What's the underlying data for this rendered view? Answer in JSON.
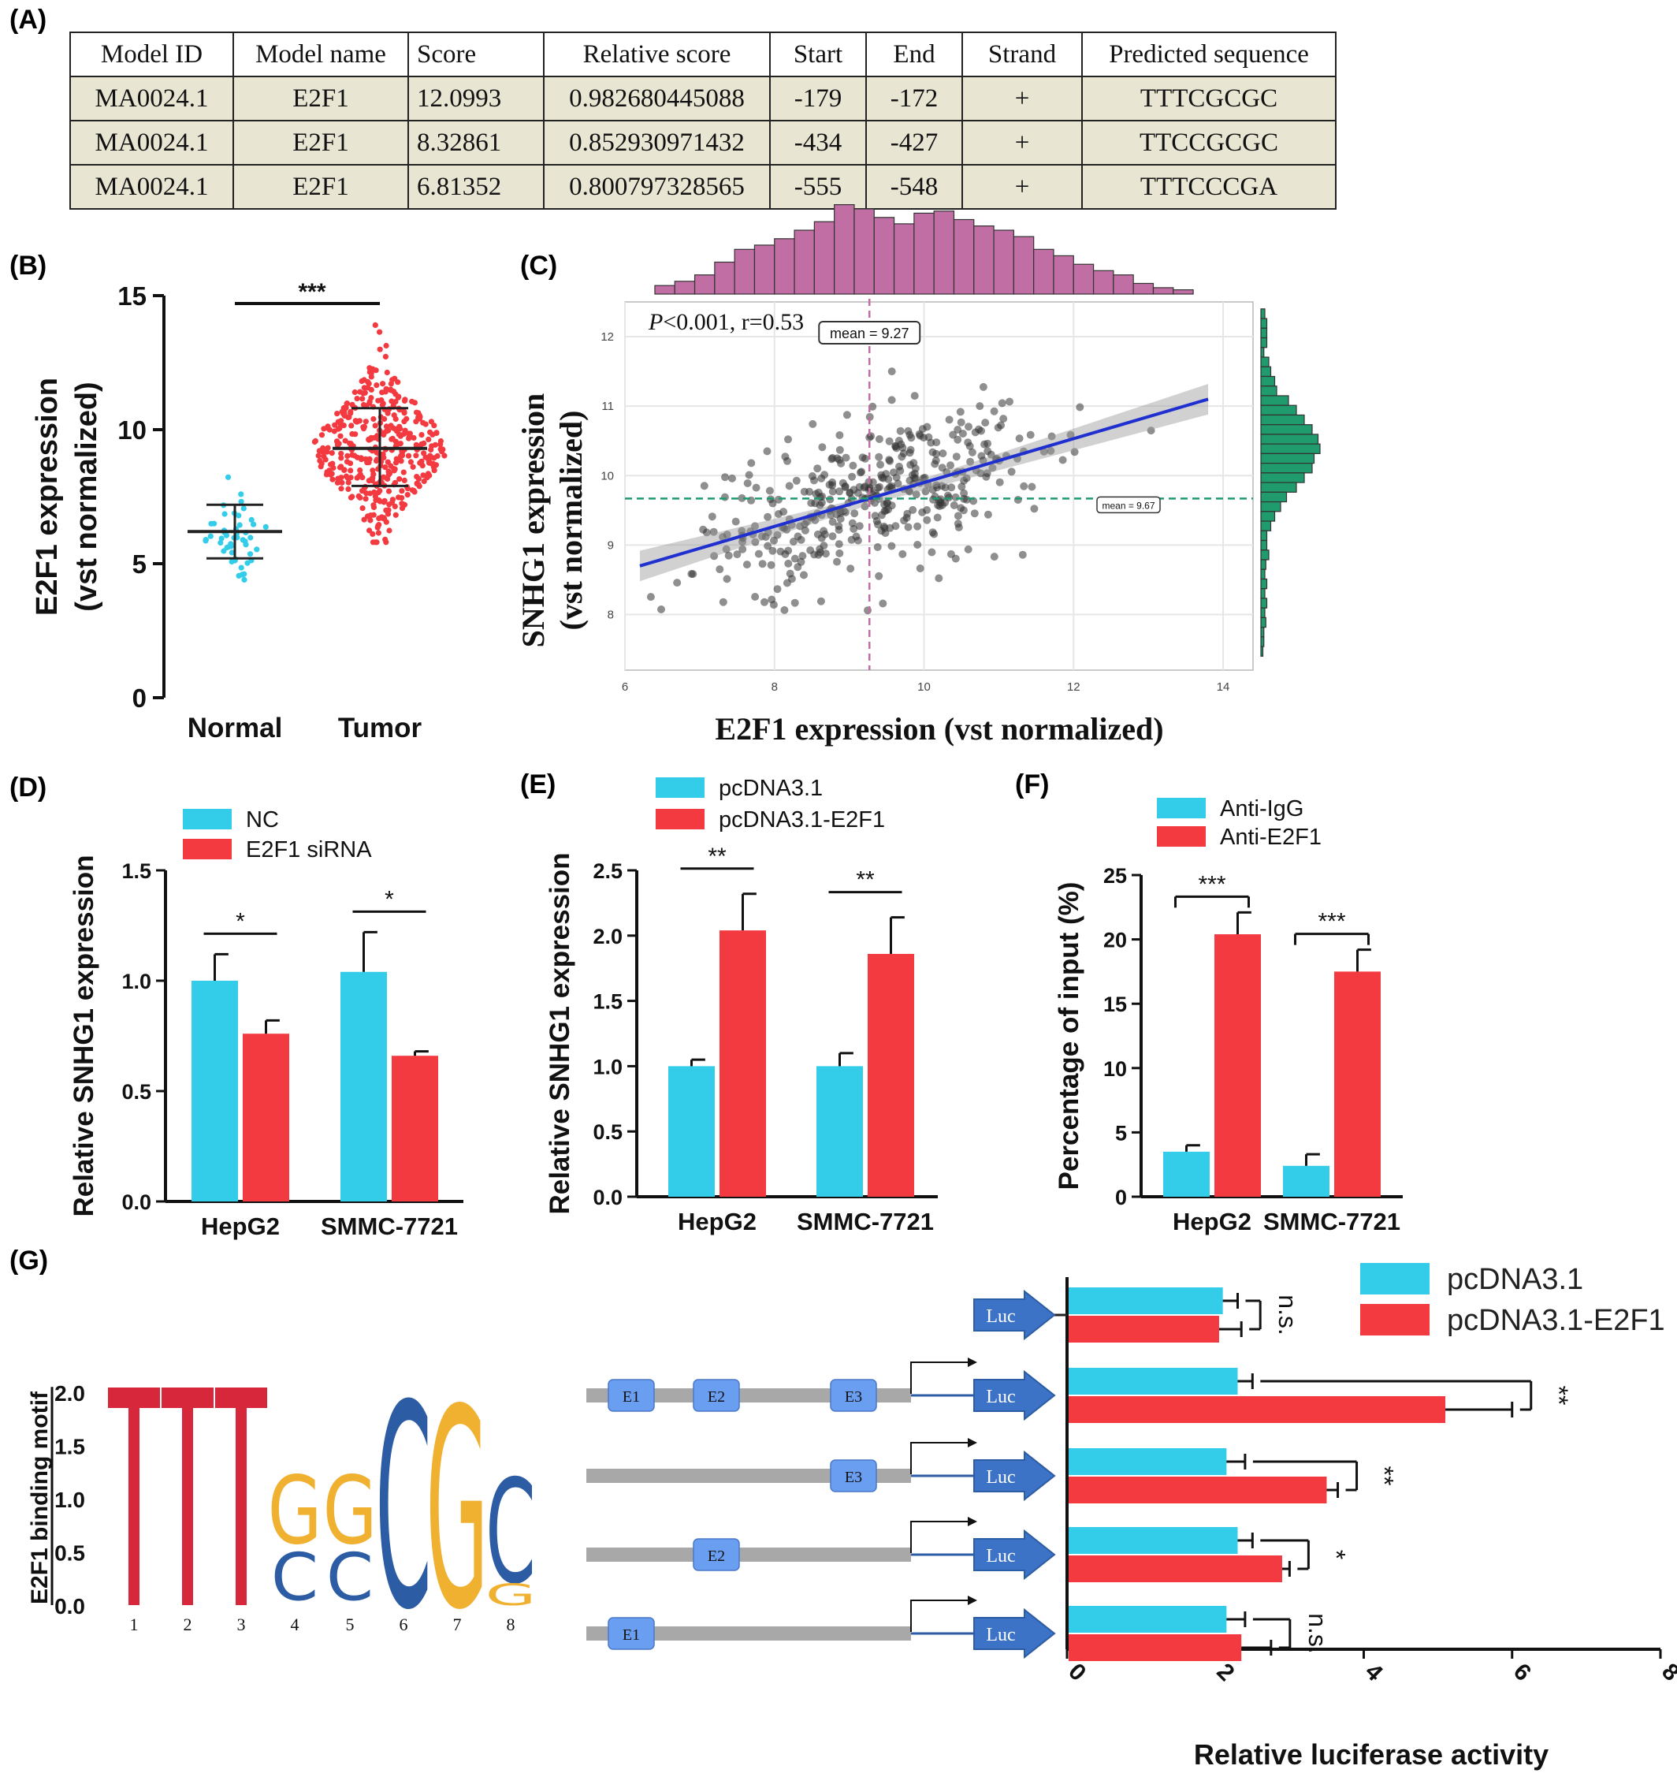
{
  "panels": {
    "A": "(A)",
    "B": "(B)",
    "C": "(C)",
    "D": "(D)",
    "E": "(E)",
    "F": "(F)",
    "G": "(G)"
  },
  "colors": {
    "cyan": "#33cde9",
    "red": "#f23a40",
    "purple": "#c06ea3",
    "green": "#1f9b6e",
    "blue_line": "#1f2fd0",
    "luc": "#3d73c7",
    "element": "#6a9ef0",
    "gray": "#a8a8a8"
  },
  "table": {
    "headers": [
      "Model ID",
      "Model name",
      "Score",
      "Relative score",
      "Start",
      "End",
      "Strand",
      "Predicted sequence"
    ],
    "rows": [
      [
        "MA0024.1",
        "E2F1",
        "12.0993",
        "0.982680445088",
        "-179",
        "-172",
        "+",
        "TTTCGCGC"
      ],
      [
        "MA0024.1",
        "E2F1",
        "8.32861",
        "0.852930971432",
        "-434",
        "-427",
        "+",
        "TTCCGCGC"
      ],
      [
        "MA0024.1",
        "E2F1",
        "6.81352",
        "0.800797328565",
        "-555",
        "-548",
        "+",
        "TTTCCCGA"
      ]
    ]
  },
  "chart_data": [
    {
      "id": "B",
      "type": "scatter",
      "ylabel_line1": "E2F1 expression",
      "ylabel_line2": "(vst normalized)",
      "categories": [
        "Normal",
        "Tumor"
      ],
      "ylim": [
        0,
        15
      ],
      "yticks": [
        "0",
        "5",
        "10",
        "15"
      ],
      "series": [
        {
          "name": "Normal",
          "mean": 6.2,
          "sd_low": 5.2,
          "sd_high": 7.2,
          "min": 4.4,
          "max": 8.8
        },
        {
          "name": "Tumor",
          "mean": 9.3,
          "sd_low": 7.9,
          "sd_high": 10.8,
          "min": 5.8,
          "max": 13.9
        }
      ],
      "significance": "***"
    },
    {
      "id": "C",
      "type": "scatter",
      "xlabel": "E2F1 expression (vst normalized)",
      "ylabel_line1": "SNHG1 expression",
      "ylabel_line2": "(vst normalized)",
      "annotation_p": "P",
      "annotation_rest": "<0.001, r=0.53",
      "mean_x_label": "mean = 9.27",
      "mean_y_label": "mean = 9.67",
      "mean_x": 9.27,
      "mean_y": 9.67,
      "xlim": [
        6,
        14.4
      ],
      "ylim": [
        7.2,
        12.5
      ],
      "xticks": [
        "6",
        "8",
        "10",
        "12",
        "14"
      ],
      "yticks": [
        "8",
        "9",
        "10",
        "11",
        "12"
      ],
      "regression": {
        "x0": 6.2,
        "y0": 8.7,
        "x1": 13.8,
        "y1": 11.1
      }
    },
    {
      "id": "D",
      "type": "bar",
      "ylabel": "Relative SNHG1 expression",
      "categories": [
        "HepG2",
        "SMMC-7721"
      ],
      "ylim": [
        0,
        1.5
      ],
      "yticks": [
        "0.0",
        "0.5",
        "1.0",
        "1.5"
      ],
      "series": [
        {
          "name": "NC",
          "values": [
            1.0,
            1.04
          ],
          "errors": [
            0.12,
            0.18
          ]
        },
        {
          "name": "E2F1 siRNA",
          "values": [
            0.76,
            0.66
          ],
          "errors": [
            0.06,
            0.02
          ]
        }
      ],
      "significance": [
        "*",
        "*"
      ]
    },
    {
      "id": "E",
      "type": "bar",
      "ylabel": "Relative SNHG1 expression",
      "categories": [
        "HepG2",
        "SMMC-7721"
      ],
      "ylim": [
        0,
        2.5
      ],
      "yticks": [
        "0.0",
        "0.5",
        "1.0",
        "1.5",
        "2.0",
        "2.5"
      ],
      "series": [
        {
          "name": "pcDNA3.1",
          "values": [
            1.0,
            1.0
          ],
          "errors": [
            0.05,
            0.1
          ]
        },
        {
          "name": "pcDNA3.1-E2F1",
          "values": [
            2.04,
            1.86
          ],
          "errors": [
            0.28,
            0.28
          ]
        }
      ],
      "significance": [
        "**",
        "**"
      ]
    },
    {
      "id": "F",
      "type": "bar",
      "ylabel": "Percentage of input (%)",
      "categories": [
        "HepG2",
        "SMMC-7721"
      ],
      "ylim": [
        0,
        25
      ],
      "yticks": [
        "0",
        "5",
        "10",
        "15",
        "20",
        "25"
      ],
      "series": [
        {
          "name": "Anti-IgG",
          "values": [
            3.5,
            2.4
          ],
          "errors": [
            0.5,
            0.9
          ]
        },
        {
          "name": "Anti-E2F1",
          "values": [
            20.4,
            17.5
          ],
          "errors": [
            1.7,
            1.7
          ]
        }
      ],
      "significance": [
        "***",
        "***"
      ]
    },
    {
      "id": "G",
      "type": "bar",
      "xlabel": "Relative luciferase activity",
      "xlim": [
        0,
        8
      ],
      "xticks": [
        "0",
        "2",
        "4",
        "6",
        "8"
      ],
      "constructs": [
        "Luc",
        "Luc",
        "Luc",
        "Luc",
        "Luc"
      ],
      "elements": [
        [],
        [
          "E1",
          "E2",
          "E3"
        ],
        [
          "E3"
        ],
        [
          "E2"
        ],
        [
          "E1"
        ]
      ],
      "series": [
        {
          "name": "pcDNA3.1",
          "values": [
            2.1,
            2.3,
            2.15,
            2.3,
            2.15
          ],
          "errors": [
            0.2,
            0.2,
            0.25,
            0.2,
            0.25
          ]
        },
        {
          "name": "pcDNA3.1-E2F1",
          "values": [
            2.05,
            5.1,
            3.5,
            2.9,
            2.35
          ],
          "errors": [
            0.3,
            0.9,
            0.15,
            0.1,
            0.4
          ]
        }
      ],
      "significance": [
        "n.s.",
        "**",
        "**",
        "*",
        "n.s."
      ]
    }
  ],
  "logo": {
    "ylabel": "E2F1 binding motif",
    "yticks": [
      "0.0",
      "0.5",
      "1.0",
      "1.5",
      "2.0"
    ],
    "positions": [
      "1",
      "2",
      "3",
      "4",
      "5",
      "6",
      "7",
      "8"
    ],
    "letters": "TTTGGCGC/CC/G"
  }
}
